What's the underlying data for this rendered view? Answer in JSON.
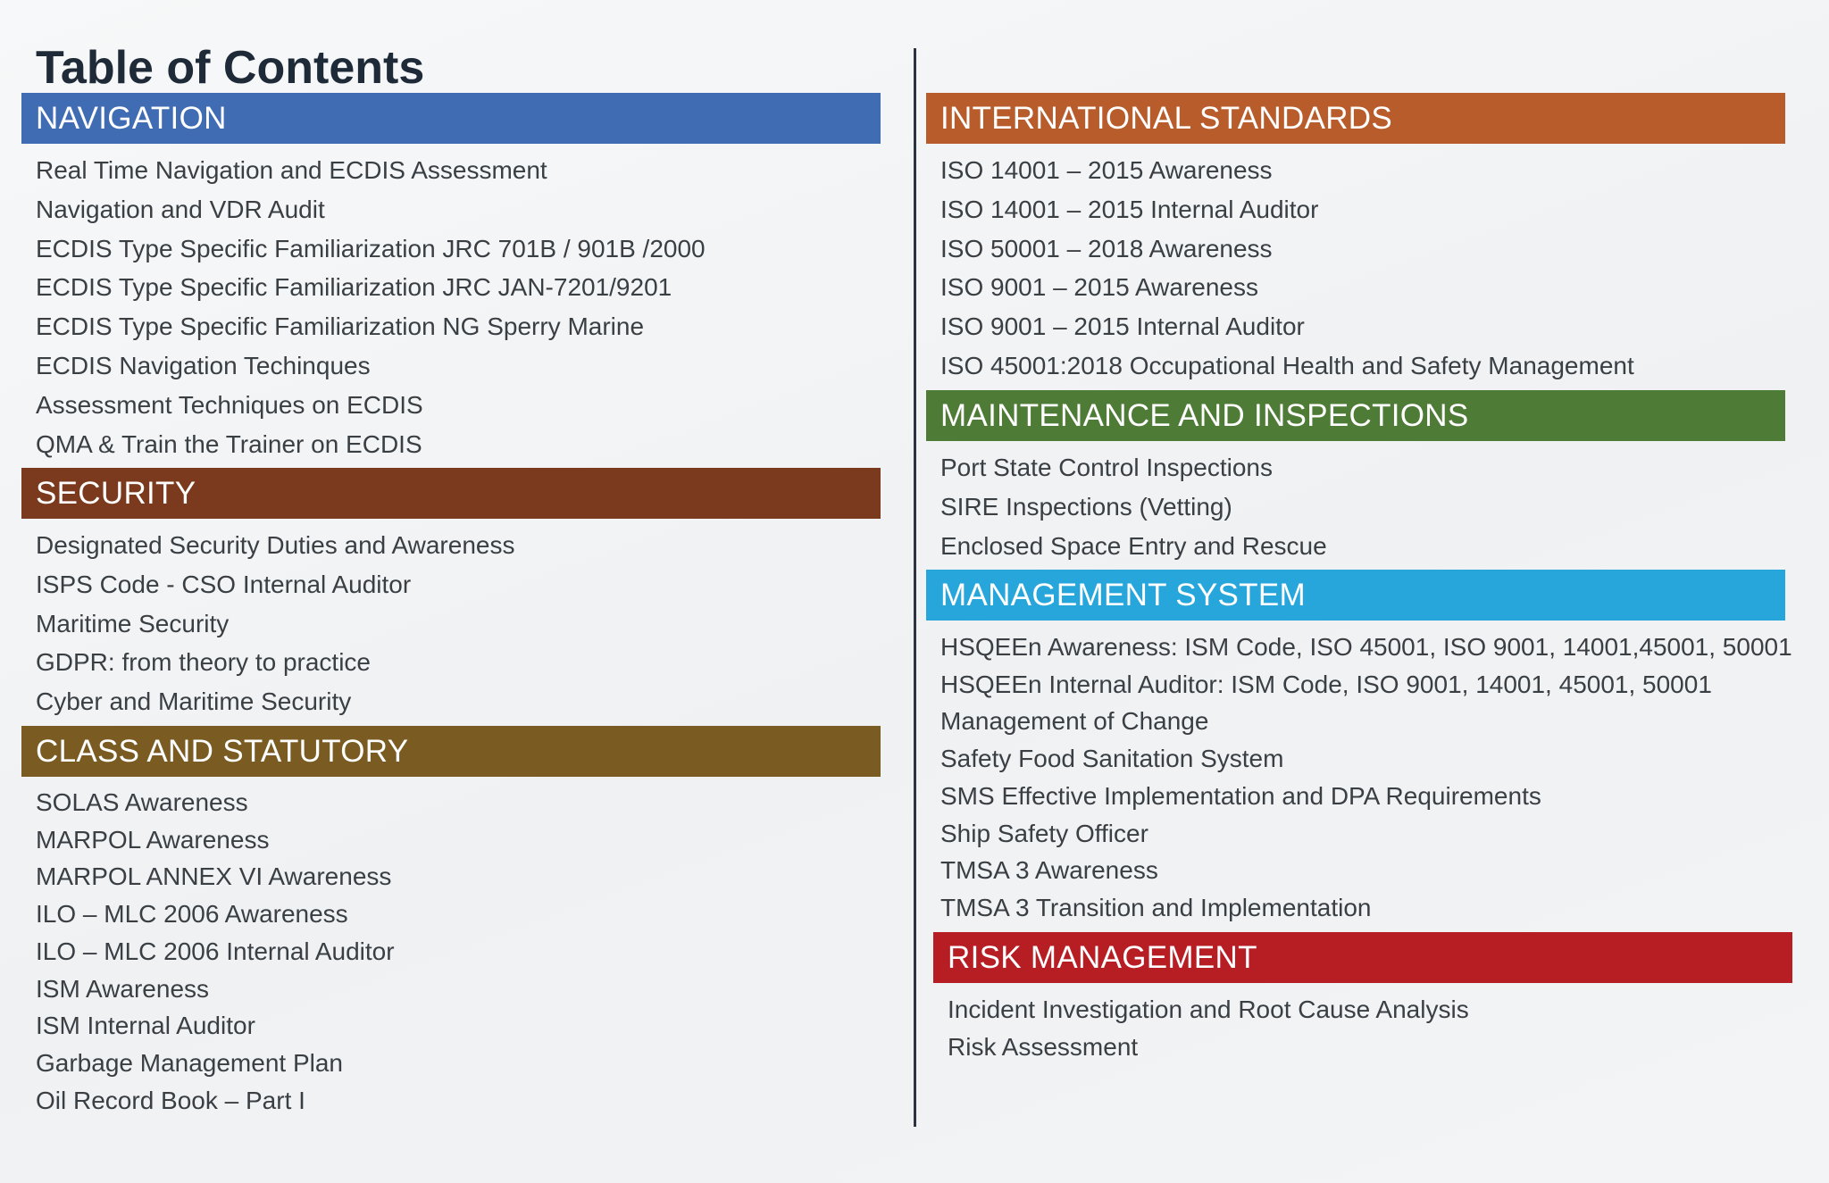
{
  "page": {
    "title": "Table of Contents"
  },
  "colors": {
    "navigation": "#3f6cb3",
    "security": "#7b3a1e",
    "class_statutory": "#7a5c23",
    "international_standards": "#b95c2c",
    "maintenance": "#4e7b35",
    "management_system": "#27a6dc",
    "risk_management": "#b71e24",
    "divider": "#2b3440"
  },
  "sections": {
    "navigation": {
      "heading": "NAVIGATION",
      "items": [
        "Real Time Navigation and ECDIS Assessment",
        "Navigation and VDR Audit",
        "ECDIS Type Specific Familiarization JRC 701B / 901B /2000",
        "ECDIS Type Specific Familiarization JRC JAN-7201/9201",
        "ECDIS Type Specific Familiarization NG Sperry Marine",
        "ECDIS Navigation Techinques",
        "Assessment Techniques on ECDIS",
        "QMA & Train the Trainer on ECDIS"
      ]
    },
    "security": {
      "heading": "SECURITY",
      "items": [
        "Designated Security Duties and Awareness",
        "ISPS Code - CSO Internal Auditor",
        "Maritime Security",
        "GDPR: from theory to practice",
        "Cyber and Maritime Security"
      ]
    },
    "class_statutory": {
      "heading": "CLASS AND STATUTORY",
      "items": [
        "SOLAS Awareness",
        "MARPOL Awareness",
        "MARPOL ANNEX VI Awareness",
        "ILO – MLC 2006 Awareness",
        "ILO – MLC 2006 Internal Auditor",
        "ISM Awareness",
        "ISM Internal Auditor",
        "Garbage Management Plan",
        "Oil Record Book – Part I"
      ]
    },
    "international_standards": {
      "heading": "INTERNATIONAL STANDARDS",
      "items": [
        "ISO 14001 – 2015 Awareness",
        "ISO 14001 – 2015 Internal Auditor",
        "ISO 50001 – 2018 Awareness",
        "ISO 9001 – 2015 Awareness",
        "ISO 9001 – 2015 Internal Auditor",
        "ISO 45001:2018 Occupational Health and Safety Management"
      ]
    },
    "maintenance": {
      "heading": "MAINTENANCE AND INSPECTIONS",
      "items": [
        "Port State Control Inspections",
        "SIRE Inspections (Vetting)",
        "Enclosed Space Entry and Rescue"
      ]
    },
    "management_system": {
      "heading": "MANAGEMENT SYSTEM",
      "items": [
        "HSQEEn Awareness: ISM Code, ISO 45001, ISO 9001, 14001,45001, 50001",
        "HSQEEn Internal Auditor: ISM Code, ISO 9001, 14001, 45001, 50001",
        "Management of Change",
        "Safety Food Sanitation System",
        "SMS Effective Implementation and DPA Requirements",
        "Ship Safety Officer",
        "TMSA 3 Awareness",
        "TMSA 3 Transition and Implementation"
      ]
    },
    "risk_management": {
      "heading": "RISK MANAGEMENT",
      "items": [
        "Incident Investigation and Root Cause Analysis",
        "Risk Assessment"
      ]
    }
  }
}
